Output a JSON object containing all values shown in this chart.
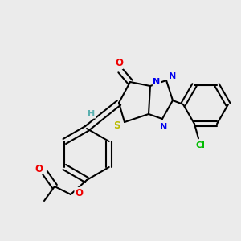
{
  "background_color": "#ebebeb",
  "atom_colors": {
    "C": "#000000",
    "H": "#5aafaf",
    "N": "#0000ee",
    "O": "#ee0000",
    "S": "#bbbb00",
    "Cl": "#00bb00"
  },
  "bond_color": "#000000",
  "bond_width": 1.5,
  "figsize": [
    3.0,
    3.0
  ],
  "dpi": 100
}
